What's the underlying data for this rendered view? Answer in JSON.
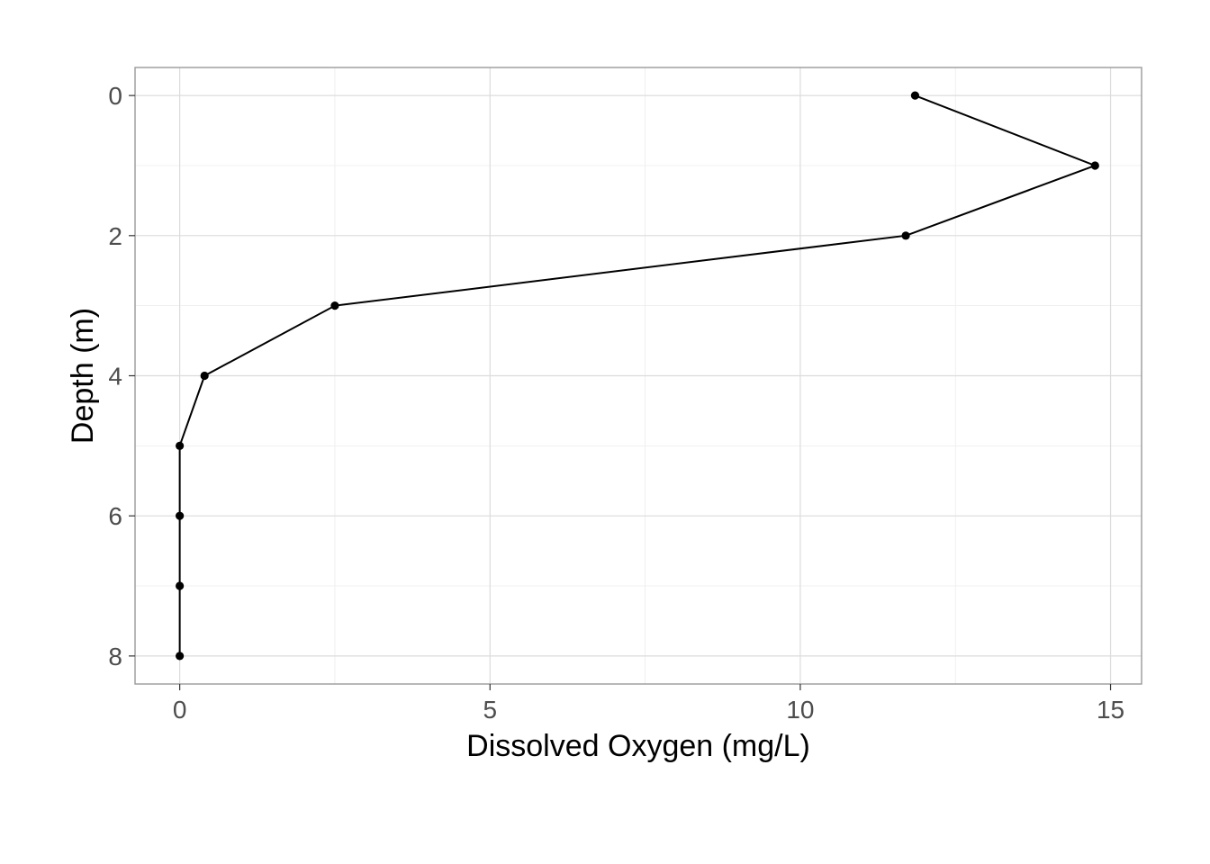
{
  "chart_data": {
    "type": "line",
    "title": "",
    "xlabel": "Dissolved Oxygen (mg/L)",
    "ylabel": "Depth (m)",
    "xlim": [
      -0.72,
      15.5
    ],
    "ylim": [
      -0.4,
      8.4
    ],
    "y_reversed": true,
    "x_ticks": [
      0,
      5,
      10,
      15
    ],
    "y_ticks": [
      0,
      2,
      4,
      6,
      8
    ],
    "grid": true,
    "series": [
      {
        "points": [
          {
            "x": 11.85,
            "y": 0
          },
          {
            "x": 14.75,
            "y": 1
          },
          {
            "x": 11.7,
            "y": 2
          },
          {
            "x": 2.5,
            "y": 3
          },
          {
            "x": 0.4,
            "y": 4
          },
          {
            "x": 0.0,
            "y": 5
          },
          {
            "x": 0.0,
            "y": 6
          },
          {
            "x": 0.0,
            "y": 7
          },
          {
            "x": 0.0,
            "y": 8
          }
        ],
        "color": "#000000"
      }
    ]
  }
}
